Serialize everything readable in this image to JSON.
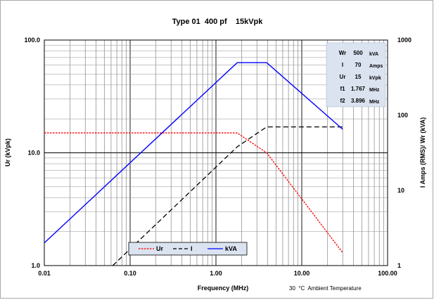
{
  "chart_data": {
    "type": "line",
    "title": "Type 01  400 pf    15kVpk",
    "xlabel": "Frequency (MHz)",
    "ylabel_left": "Ur (kVpk)",
    "ylabel_right": "I Amps (RMS)/ Wr (kVA)",
    "x_scale": "log",
    "y_scale": "log",
    "xlim": [
      0.01,
      100
    ],
    "ylim_left": [
      1,
      100
    ],
    "ylim_right": [
      1,
      1000
    ],
    "x_ticks": [
      "0.01",
      "0.10",
      "1.00",
      "10.00",
      "100.00"
    ],
    "y_left_ticks": [
      "1.0",
      "10.0",
      "100.0"
    ],
    "y_right_ticks": [
      "1",
      "10",
      "100",
      "1000"
    ],
    "grid": true,
    "legend_placement": "bottom-center",
    "series": [
      {
        "name": "Ur",
        "axis": "left",
        "color": "#ff0000",
        "dash": "dotted",
        "points": [
          [
            0.01,
            15
          ],
          [
            1.767,
            15
          ],
          [
            3.896,
            10
          ],
          [
            30,
            1.3
          ]
        ]
      },
      {
        "name": "I",
        "axis": "right",
        "color": "#000000",
        "dash": "dashed",
        "points": [
          [
            0.01,
            0.135
          ],
          [
            1.767,
            38
          ],
          [
            3.896,
            70
          ],
          [
            30,
            70
          ]
        ]
      },
      {
        "name": "kVA",
        "axis": "right",
        "color": "#0000ff",
        "dash": "solid",
        "points": [
          [
            0.01,
            2
          ],
          [
            1.767,
            500
          ],
          [
            3.896,
            500
          ],
          [
            30,
            65
          ]
        ]
      }
    ],
    "info_box": {
      "rows": [
        {
          "label": "Wr",
          "value": "500",
          "unit": "kVA"
        },
        {
          "label": "I",
          "value": "70",
          "unit": "Amps"
        },
        {
          "label": "Ur",
          "value": "15",
          "unit": "kVpk"
        },
        {
          "label": "f1",
          "value": "1.767",
          "unit": "MHz"
        },
        {
          "label": "f2",
          "value": "3.896",
          "unit": "MHz"
        }
      ]
    },
    "footnote": "30  °C  Ambient Temperature"
  }
}
